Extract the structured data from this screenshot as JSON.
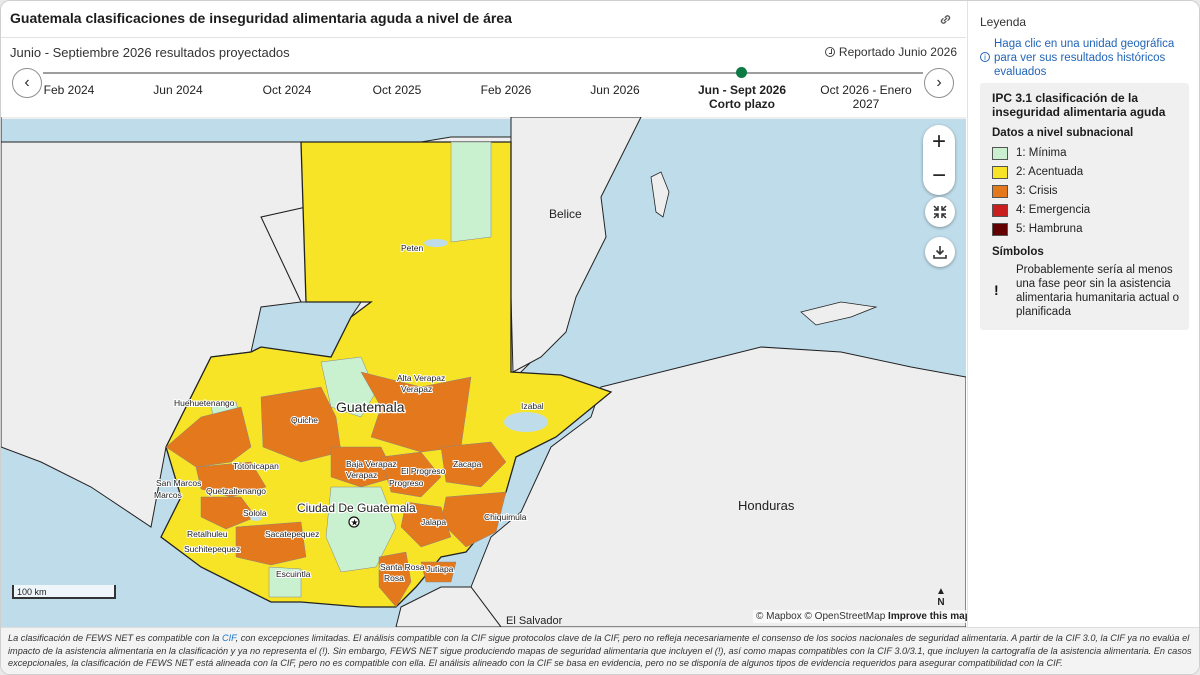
{
  "header": {
    "title": "Guatemala clasificaciones de inseguridad alimentaria aguda a nivel de área",
    "subtitle": "Junio - Septiembre 2026 resultados proyectados",
    "reported": "Reportado Junio 2026"
  },
  "timeline": {
    "items": [
      {
        "label": "Feb 2024",
        "sub": ""
      },
      {
        "label": "Jun 2024",
        "sub": ""
      },
      {
        "label": "Oct 2024",
        "sub": ""
      },
      {
        "label": "Oct 2025",
        "sub": ""
      },
      {
        "label": "Feb 2026",
        "sub": ""
      },
      {
        "label": "Jun 2026",
        "sub": ""
      },
      {
        "label": "Jun - Sept 2026",
        "sub": "Corto plazo"
      },
      {
        "label": "Oct 2026 - Enero",
        "sub": "2027"
      }
    ],
    "prev_icon": "chevron-left-icon",
    "next_icon": "chevron-right-icon"
  },
  "map": {
    "countries": {
      "guatemala": "Guatemala",
      "belice": "Belice",
      "honduras": "Honduras",
      "el_salvador": "El Salvador"
    },
    "capital": "Ciudad De Guatemala",
    "departments": [
      "Peten",
      "Alta Verapaz",
      "Huehuetenango",
      "Quiche",
      "Izabal",
      "Baja Verapaz",
      "El Progreso",
      "Zacapa",
      "Totonicapan",
      "San Marcos",
      "Quetzaltenango",
      "Solola",
      "Chiquimula",
      "Jalapa",
      "Retalhuleu",
      "Suchitepequez",
      "Sacatepequez",
      "Escuintla",
      "Santa Rosa",
      "Jutiapa"
    ],
    "scale_label": "100 km",
    "attribution": {
      "mapbox": "© Mapbox",
      "osm": "© OpenStreetMap",
      "improve": "Improve this map"
    },
    "north_label": "N",
    "colors": {
      "water": "#bfdcea",
      "land": "#eeeeee",
      "minima": "#c9f0cf",
      "acentuada": "#f8e427",
      "crisis": "#e3781c",
      "emergencia": "#c81e1e",
      "hambruna": "#640000"
    }
  },
  "footer": {
    "text_a": "La clasificación de FEWS NET es compatible con la ",
    "cif_1": "CIF",
    "text_b": ", con excepciones limitadas. El análisis compatible con la CIF sigue protocolos clave de la CIF, pero no refleja necesariamente el consenso de los socios nacionales de seguridad alimentaria. A partir de la CIF 3.0, la CIF ya no evalúa el impacto de la asistencia alimentaria en la clasificación y ya no representa el (!). Sin embargo, FEWS NET sigue produciendo mapas de seguridad alimentaria que incluyen el (!), así como mapas compatibles con la CIF 3.0/3.1, que incluyen la cartografía de la asistencia alimentaria. En casos excepcionales, la clasificación de FEWS NET está alineada con la CIF, pero no es compatible con ella. El análisis alineado con la CIF se basa en evidencia, pero no se disponía de algunos tipos de evidencia requeridos para asegurar compatibilidad con la CIF."
  },
  "legend": {
    "title": "Leyenda",
    "info": "Haga clic en una unidad geográfica para ver sus resultados históricos evaluados",
    "heading": "IPC 3.1 clasificación de la inseguridad alimentaria aguda",
    "subnational": "Datos a nivel subnacional",
    "items": [
      {
        "label": "1: Mínima",
        "color": "#c9f0cf"
      },
      {
        "label": "2: Acentuada",
        "color": "#f8e427"
      },
      {
        "label": "3: Crisis",
        "color": "#e3781c"
      },
      {
        "label": "4: Emergencia",
        "color": "#c81e1e"
      },
      {
        "label": "5: Hambruna",
        "color": "#640000"
      }
    ],
    "symbols_title": "Símbolos",
    "symbol_mark": "!",
    "symbol_text": "Probablemente sería al menos una fase peor sin la asistencia alimentaria humanitaria actual o planificada"
  }
}
